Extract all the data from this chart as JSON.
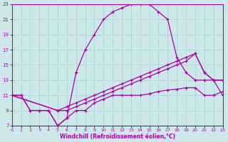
{
  "xlabel": "Windchill (Refroidissement éolien,°C)",
  "xlim": [
    0,
    23
  ],
  "ylim": [
    7,
    23
  ],
  "xticks": [
    0,
    1,
    2,
    3,
    4,
    5,
    6,
    7,
    8,
    9,
    10,
    11,
    12,
    13,
    14,
    15,
    16,
    17,
    18,
    19,
    20,
    21,
    22,
    23
  ],
  "yticks": [
    7,
    9,
    11,
    13,
    15,
    17,
    19,
    21,
    23
  ],
  "background_color": "#cce8e8",
  "line_color": "#aa00aa",
  "grid_color": "#b0d8d8",
  "curve1_x": [
    0,
    1,
    2,
    3,
    4,
    5,
    6,
    7,
    8,
    9,
    10,
    11,
    12,
    13,
    14,
    15,
    16,
    17,
    18,
    19,
    20,
    21,
    22,
    23
  ],
  "curve1_y": [
    11,
    11,
    9,
    9,
    9,
    7,
    8,
    14,
    17,
    19,
    21,
    22,
    22.5,
    23,
    23,
    23,
    22,
    21,
    16,
    14,
    13,
    13,
    13,
    11
  ],
  "curve2_x": [
    0,
    1,
    2,
    3,
    4,
    5,
    6,
    7,
    8,
    9,
    10,
    11,
    12,
    13,
    14,
    15,
    16,
    17,
    18,
    19,
    20,
    21,
    22,
    23
  ],
  "curve2_y": [
    11,
    11,
    9,
    9,
    9,
    7,
    8,
    9,
    9,
    10,
    10.5,
    11,
    11,
    11,
    11,
    11.2,
    11.5,
    11.7,
    11.8,
    12,
    12,
    11,
    11,
    11.5
  ],
  "curve3_x": [
    0,
    5,
    6,
    7,
    8,
    9,
    10,
    11,
    12,
    13,
    14,
    15,
    16,
    17,
    18,
    19,
    20,
    21,
    22,
    23
  ],
  "curve3_y": [
    11,
    9,
    9,
    9.5,
    10,
    10.5,
    11,
    11.5,
    12,
    12.5,
    13,
    13.5,
    14,
    14.5,
    15,
    15.5,
    16.5,
    14,
    13,
    13
  ],
  "curve4_x": [
    0,
    5,
    6,
    7,
    8,
    9,
    10,
    11,
    12,
    13,
    14,
    15,
    16,
    17,
    18,
    19,
    20,
    21,
    22,
    23
  ],
  "curve4_y": [
    11,
    9,
    9.5,
    10,
    10.5,
    11,
    11.5,
    12,
    12.5,
    13,
    13.5,
    14,
    14.5,
    15,
    15.5,
    16,
    16.5,
    14,
    13,
    13
  ]
}
